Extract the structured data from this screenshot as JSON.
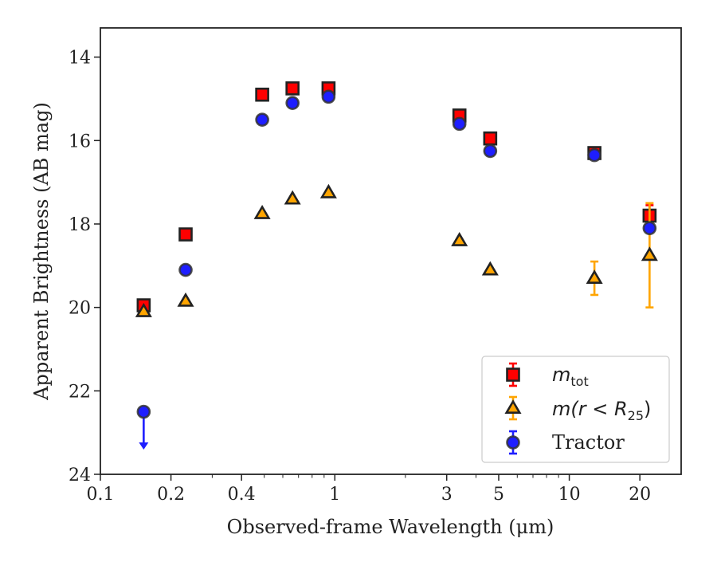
{
  "chart_data": {
    "type": "scatter",
    "xlabel": "Observed-frame Wavelength (μm)",
    "ylabel": "Apparent Brightness (AB mag)",
    "xscale": "log",
    "xlim": [
      0.1,
      30
    ],
    "ylim": [
      24,
      13.3
    ],
    "y_inverted": true,
    "xticks": [
      0.1,
      0.2,
      0.4,
      1,
      3,
      5,
      10,
      20
    ],
    "xticklabels": [
      "0.1",
      "0.2",
      "0.4",
      "1",
      "3",
      "5",
      "10",
      "20"
    ],
    "yticks": [
      14,
      16,
      18,
      20,
      22,
      24
    ],
    "yticklabels": [
      "14",
      "16",
      "18",
      "20",
      "22",
      "24"
    ],
    "grid": false,
    "legend_position": "lower-right",
    "series": [
      {
        "name": "m_tot",
        "legend_main": "m",
        "legend_sub": "tot",
        "marker": "square",
        "fill": "#ff0000",
        "edge": "#222222",
        "errcolor": "#ff0000",
        "x": [
          0.153,
          0.231,
          0.49,
          0.66,
          0.94,
          3.4,
          4.6,
          12.8,
          22.0
        ],
        "y": [
          19.95,
          18.25,
          14.9,
          14.75,
          14.75,
          15.4,
          15.95,
          16.3,
          17.8
        ],
        "yerr": [
          0.05,
          0.05,
          0.05,
          0.05,
          0.05,
          0.05,
          0.05,
          0.05,
          0.25
        ]
      },
      {
        "name": "m(r < R25)",
        "legend_main": "m(r < R",
        "legend_sub": "25",
        "legend_tail": ")",
        "marker": "triangle",
        "fill": "#ffa500",
        "edge": "#222222",
        "errcolor": "#ffa500",
        "x": [
          0.153,
          0.231,
          0.49,
          0.66,
          0.94,
          3.4,
          4.6,
          12.8,
          22.0
        ],
        "y": [
          20.1,
          19.85,
          17.75,
          17.4,
          17.25,
          18.4,
          19.1,
          19.3,
          18.75
        ],
        "yerr": [
          0,
          0,
          0,
          0,
          0,
          0,
          0,
          0.4,
          1.25
        ]
      },
      {
        "name": "Tractor",
        "legend_main": "Tractor",
        "marker": "circle",
        "fill": "#1e1eff",
        "edge": "#333333",
        "errcolor": "#1e1eff",
        "x": [
          0.153,
          0.231,
          0.49,
          0.66,
          0.94,
          3.4,
          4.6,
          12.8,
          22.0
        ],
        "y": [
          22.5,
          19.1,
          15.5,
          15.1,
          14.95,
          15.6,
          16.25,
          16.35,
          18.1
        ],
        "yerr": [
          0,
          0,
          0,
          0,
          0,
          0,
          0,
          0,
          0
        ],
        "upper_limit_index": 0
      }
    ]
  }
}
